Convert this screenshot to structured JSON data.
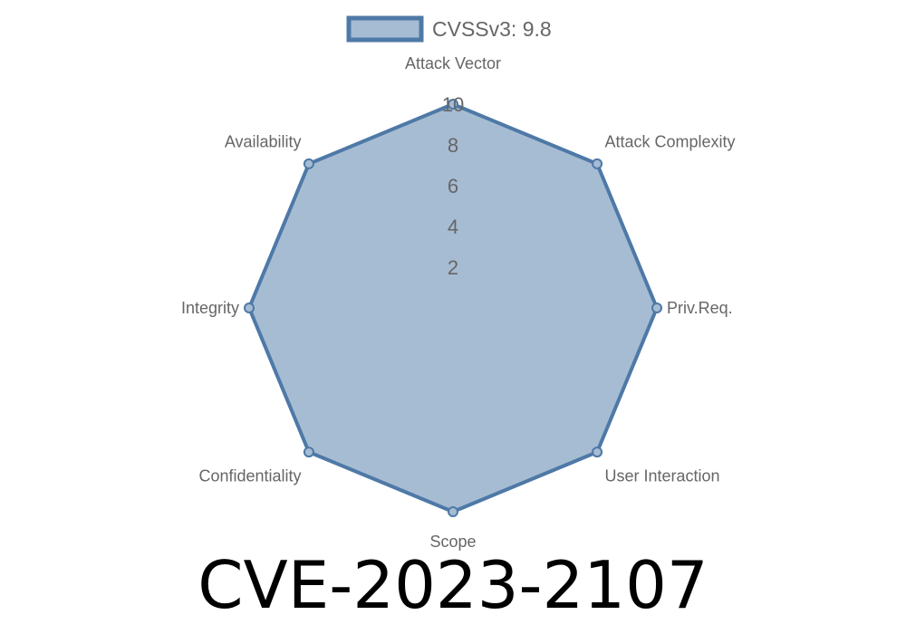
{
  "chart_data": {
    "type": "radar",
    "axes": [
      "Attack Vector",
      "Attack Complexity",
      "Priv.Req.",
      "User Interaction",
      "Scope",
      "Confidentiality",
      "Integrity",
      "Availability"
    ],
    "series": [
      {
        "name": "CVSSv3: 9.8",
        "values": [
          10,
          10,
          10,
          10,
          10,
          10,
          10,
          10
        ]
      }
    ],
    "rlim": [
      0,
      10
    ],
    "ticks": [
      "2",
      "4",
      "6",
      "8",
      "10"
    ],
    "grid": true,
    "legend": "top",
    "colors": {
      "stroke": "#4e79a7",
      "fill": "#a6bcd3",
      "grid": "#c8c8c8"
    }
  },
  "title": "CVE-2023-2107"
}
